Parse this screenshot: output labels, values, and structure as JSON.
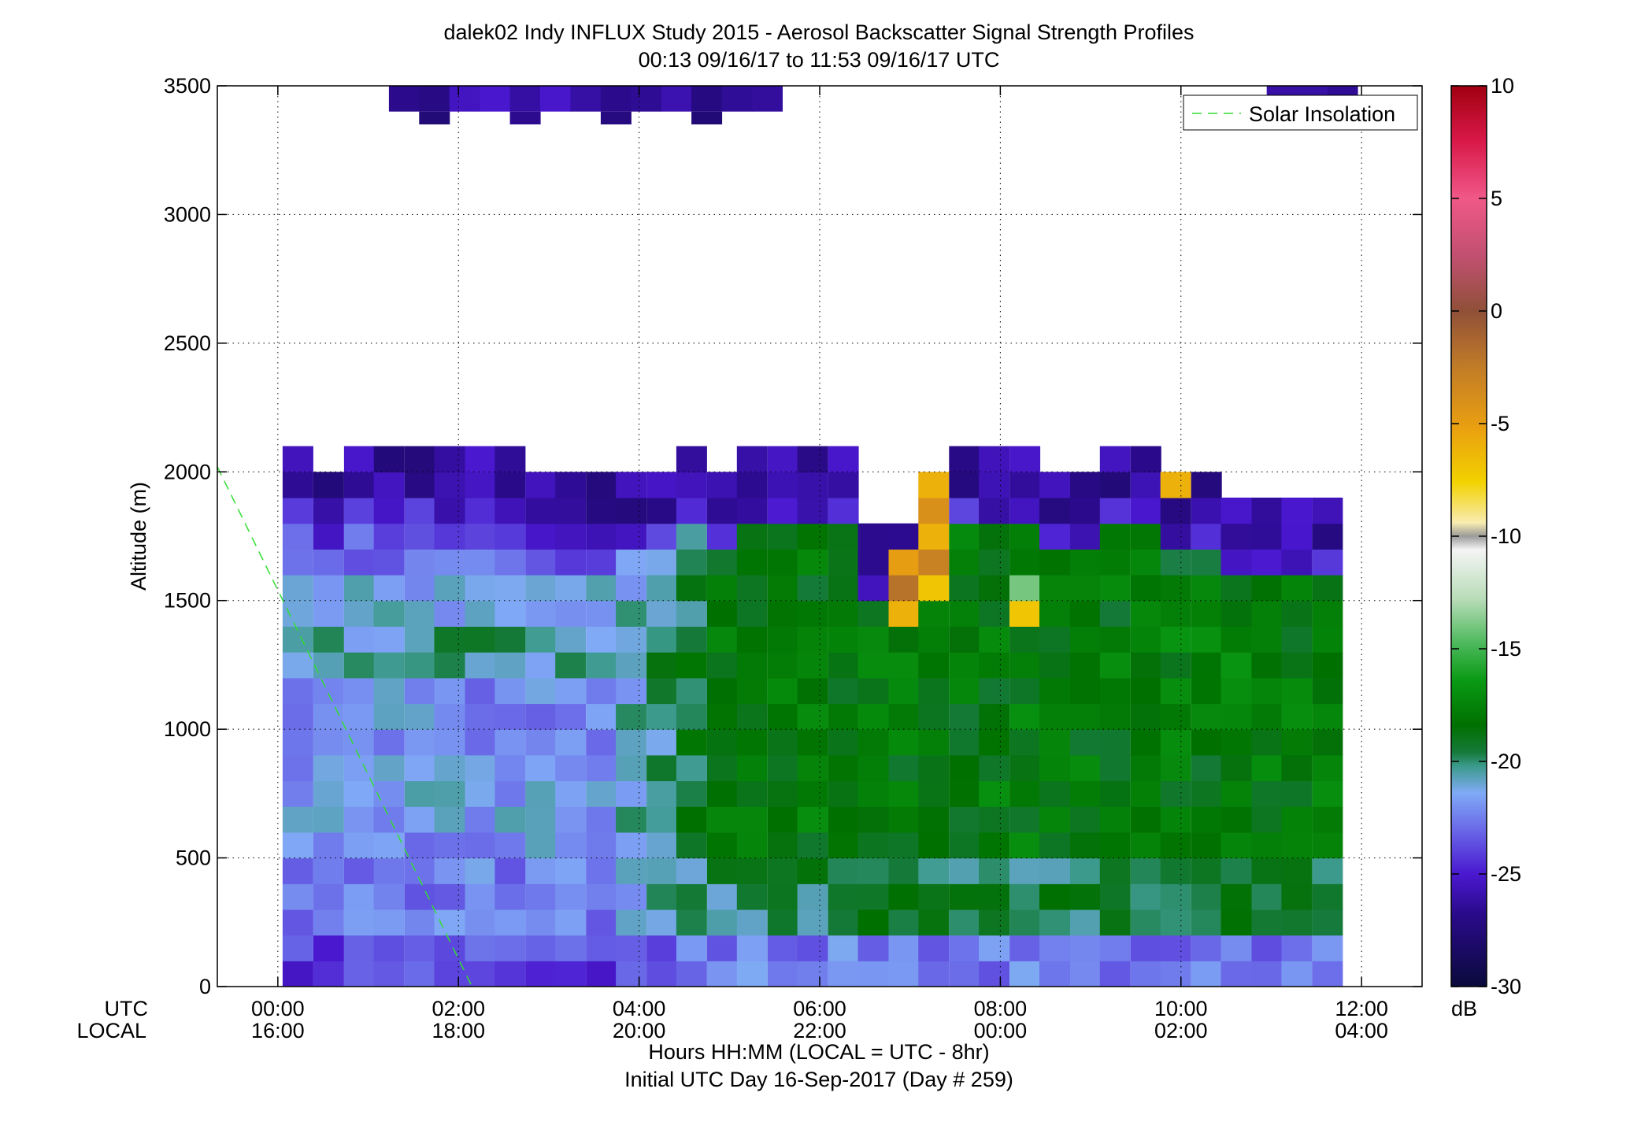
{
  "chart_data": {
    "type": "heatmap",
    "title": "dalek02 Indy INFLUX Study 2015 - Aerosol Backscatter Signal Strength Profiles",
    "subtitle": "00:13 09/16/17 to 11:53 09/16/17  UTC",
    "ylabel": "Altitude (m)",
    "xlabel": "Hours HH:MM  (LOCAL = UTC - 8hr)",
    "xlabel2": "Initial UTC Day 16-Sep-2017 (Day # 259)",
    "xrow_labels": [
      "UTC",
      "LOCAL"
    ],
    "xlim_hours": [
      -0.67,
      12.67
    ],
    "ylim": [
      0,
      3500
    ],
    "yticks": [
      0,
      500,
      1000,
      1500,
      2000,
      2500,
      3000,
      3500
    ],
    "ytick_labels": [
      "0",
      "500",
      "1000",
      "1500",
      "2000",
      "2500",
      "3000",
      "3500"
    ],
    "xticks_hours": [
      0,
      2,
      4,
      6,
      8,
      10,
      12
    ],
    "xtick_utc_labels": [
      "00:00",
      "02:00",
      "04:00",
      "06:00",
      "08:00",
      "10:00",
      "12:00"
    ],
    "xtick_local_labels": [
      "16:00",
      "18:00",
      "20:00",
      "22:00",
      "00:00",
      "02:00",
      "04:00"
    ],
    "grid": true,
    "colorbar": {
      "range": [
        -30,
        10
      ],
      "ticks": [
        -30,
        -25,
        -20,
        -15,
        -10,
        -5,
        0,
        5,
        10
      ],
      "tick_labels": [
        "-30",
        "-25",
        "-20",
        "-15",
        "-10",
        "-5",
        "0",
        "5",
        "10"
      ],
      "unit": "dB"
    },
    "legend": {
      "position": "top-right",
      "entries": [
        {
          "name": "Solar Insolation",
          "style": "dashed",
          "color": "#33dd33"
        }
      ]
    },
    "solar_insolation_line": {
      "x_hours": [
        -0.67,
        2.15
      ],
      "y": [
        2020,
        0
      ]
    },
    "profile_times_hours": [
      0.22,
      0.56,
      0.9,
      1.23,
      1.57,
      1.9,
      2.24,
      2.57,
      2.91,
      3.24,
      3.58,
      3.91,
      4.25,
      4.58,
      4.92,
      5.25,
      5.59,
      5.92,
      6.26,
      6.59,
      6.93,
      7.26,
      7.6,
      7.93,
      8.27,
      8.6,
      8.94,
      9.27,
      9.61,
      9.94,
      10.28,
      10.61,
      10.95,
      11.28,
      11.62
    ],
    "altitude_bins_m": [
      100,
      200,
      300,
      400,
      500,
      600,
      700,
      800,
      900,
      1000,
      1100,
      1200,
      1300,
      1400,
      1500,
      1600,
      1700,
      1800,
      1900,
      2000,
      2100
    ],
    "tops_m": [
      2100,
      2050,
      2100,
      2100,
      2150,
      2150,
      2100,
      2100,
      2050,
      2050,
      2050,
      2000,
      2000,
      2100,
      2050,
      2100,
      2100,
      2100,
      2100,
      1850,
      1800,
      2050,
      2100,
      2150,
      2100,
      2050,
      2050,
      2100,
      2100,
      2050,
      2000,
      1950,
      1950,
      1900,
      1950
    ],
    "upper_layer": {
      "altitude_m": [
        3400,
        3500
      ],
      "segments_hours": [
        [
          1.23,
          5.59
        ],
        [
          10.95,
          12.0
        ]
      ],
      "value_db": -26
    },
    "hotspots": [
      {
        "time_h": 6.93,
        "alt_m": 1500,
        "value_db": -6
      },
      {
        "time_h": 6.93,
        "alt_m": 1600,
        "value_db": -2
      },
      {
        "time_h": 6.93,
        "alt_m": 1700,
        "value_db": -5
      },
      {
        "time_h": 7.26,
        "alt_m": 1550,
        "value_db": -7
      },
      {
        "time_h": 7.26,
        "alt_m": 1650,
        "value_db": -3
      },
      {
        "time_h": 7.26,
        "alt_m": 1750,
        "value_db": -6
      },
      {
        "time_h": 7.26,
        "alt_m": 1850,
        "value_db": -4
      },
      {
        "time_h": 7.26,
        "alt_m": 1950,
        "value_db": -6
      },
      {
        "time_h": 8.27,
        "alt_m": 1500,
        "value_db": -7
      },
      {
        "time_h": 8.27,
        "alt_m": 1600,
        "value_db": -14
      },
      {
        "time_h": 9.94,
        "alt_m": 1950,
        "value_db": -6
      }
    ]
  }
}
